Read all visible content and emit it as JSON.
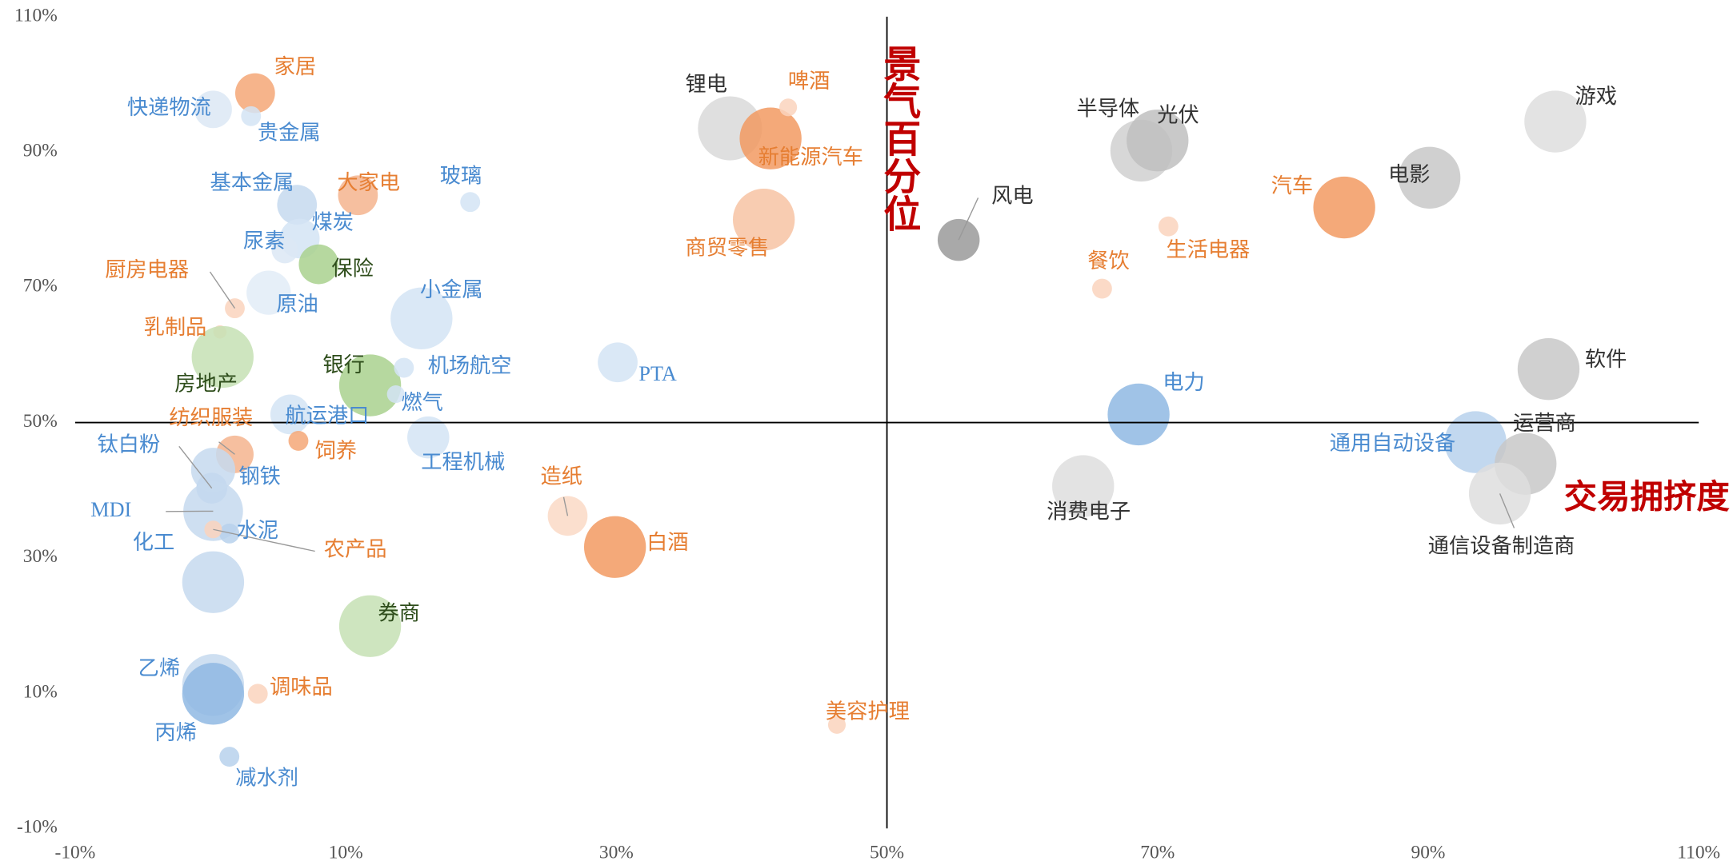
{
  "chart_data": {
    "type": "bubble",
    "x_label": "交易拥挤度",
    "y_label": "景气百分位",
    "xlim": [
      -10,
      110
    ],
    "ylim": [
      -10,
      110
    ],
    "axis_cross": {
      "x": 50,
      "y": 50
    },
    "xticks": [
      {
        "value": -10,
        "label": "-10%"
      },
      {
        "value": 10,
        "label": "10%"
      },
      {
        "value": 30,
        "label": "30%"
      },
      {
        "value": 50,
        "label": "50%"
      },
      {
        "value": 70,
        "label": "70%"
      },
      {
        "value": 90,
        "label": "90%"
      },
      {
        "value": 110,
        "label": "110%"
      }
    ],
    "yticks": [
      {
        "value": -10,
        "label": "-10%"
      },
      {
        "value": 10,
        "label": "10%"
      },
      {
        "value": 30,
        "label": "30%"
      },
      {
        "value": 50,
        "label": "50%"
      },
      {
        "value": 70,
        "label": "70%"
      },
      {
        "value": 90,
        "label": "90%"
      },
      {
        "value": 110,
        "label": "110%"
      }
    ],
    "points": [
      {
        "label": "家居",
        "x": 3.3,
        "y": 98.7,
        "size": 18,
        "color": "#f4a777",
        "label_color": "#e67e32"
      },
      {
        "label": "快递物流",
        "x": 0.2,
        "y": 96.3,
        "size": 17,
        "color": "#dce8f5",
        "label_color": "#4a8bd0"
      },
      {
        "label": "贵金属",
        "x": 3.0,
        "y": 95.3,
        "size": 9,
        "color": "#d4e4f4",
        "label_color": "#4a8bd0"
      },
      {
        "label": "基本金属",
        "x": 6.4,
        "y": 82.2,
        "size": 18,
        "color": "#c5d9ef",
        "label_color": "#4a8bd0"
      },
      {
        "label": "大家电",
        "x": 10.9,
        "y": 83.6,
        "size": 18,
        "color": "#f5b48e",
        "label_color": "#e67e32"
      },
      {
        "label": "玻璃",
        "x": 19.2,
        "y": 82.6,
        "size": 9,
        "color": "#d4e4f4",
        "label_color": "#4a8bd0"
      },
      {
        "label": "煤炭",
        "x": 6.6,
        "y": 77.2,
        "size": 18,
        "color": "#d4e4f4",
        "label_color": "#4a8bd0"
      },
      {
        "label": "尿素",
        "x": 5.5,
        "y": 75.5,
        "size": 12,
        "color": "#dce8f5",
        "label_color": "#4a8bd0"
      },
      {
        "label": "保险",
        "x": 8.0,
        "y": 73.4,
        "size": 18,
        "color": "#a9d18e",
        "label_color": "#2e4d1b"
      },
      {
        "label": "厨房电器",
        "x": 1.8,
        "y": 66.9,
        "size": 9,
        "color": "#fad4bd",
        "label_color": "#e67e32"
      },
      {
        "label": "原油",
        "x": 4.3,
        "y": 69.2,
        "size": 20,
        "color": "#e2ecf7",
        "label_color": "#4a8bd0"
      },
      {
        "label": "乳制品",
        "x": 0.7,
        "y": 63.4,
        "size": 6,
        "color": "#fad4bd",
        "label_color": "#e67e32"
      },
      {
        "label": "房地产",
        "x": 0.9,
        "y": 59.7,
        "size": 28,
        "color": "#c5e0b4",
        "label_color": "#2e4d1b"
      },
      {
        "label": "小金属",
        "x": 15.6,
        "y": 65.4,
        "size": 28,
        "color": "#d4e4f4",
        "label_color": "#4a8bd0"
      },
      {
        "label": "银行",
        "x": 11.8,
        "y": 55.5,
        "size": 28,
        "color": "#a9d18e",
        "label_color": "#2e4d1b"
      },
      {
        "label": "机场航空",
        "x": 14.3,
        "y": 58.1,
        "size": 9,
        "color": "#d4e4f4",
        "label_color": "#4a8bd0"
      },
      {
        "label": "PTA",
        "x": 30.1,
        "y": 58.9,
        "size": 18,
        "color": "#d4e4f4",
        "label_color": "#4a8bd0"
      },
      {
        "label": "燃气",
        "x": 13.7,
        "y": 54.2,
        "size": 8,
        "color": "#d4e4f4",
        "label_color": "#4a8bd0"
      },
      {
        "label": "航运港口",
        "x": 5.9,
        "y": 51.2,
        "size": 18,
        "color": "#d4e4f4",
        "label_color": "#4a8bd0"
      },
      {
        "label": "纺织服装",
        "x": 1.8,
        "y": 45.3,
        "size": 17,
        "color": "#f5b48e",
        "label_color": "#e67e32"
      },
      {
        "label": "饲养",
        "x": 6.5,
        "y": 47.3,
        "size": 9,
        "color": "#f4a777",
        "label_color": "#e67e32"
      },
      {
        "label": "工程机械",
        "x": 16.1,
        "y": 47.8,
        "size": 19,
        "color": "#d4e4f4",
        "label_color": "#4a8bd0"
      },
      {
        "label": "钛白粉",
        "x": 0.1,
        "y": 40.3,
        "size": 14,
        "color": "#b7d1ec",
        "label_color": "#4a8bd0"
      },
      {
        "label": "钢铁",
        "x": 0.2,
        "y": 43.0,
        "size": 20,
        "color": "#c5d9ef",
        "label_color": "#4a8bd0"
      },
      {
        "label": "MDI",
        "x": 0.2,
        "y": 36.9,
        "size": 27,
        "color": "#c5d9ef",
        "label_color": "#4a8bd0"
      },
      {
        "label": "化工",
        "x": 0.2,
        "y": 26.4,
        "size": 28,
        "color": "#c5d9ef",
        "label_color": "#4a8bd0"
      },
      {
        "label": "水泥",
        "x": 1.4,
        "y": 33.6,
        "size": 9,
        "color": "#b7d1ec",
        "label_color": "#4a8bd0"
      },
      {
        "label": "农产品",
        "x": 0.2,
        "y": 34.2,
        "size": 8,
        "color": "#fad4bd",
        "label_color": "#e67e32"
      },
      {
        "label": "券商",
        "x": 11.8,
        "y": 19.9,
        "size": 28,
        "color": "#c5e0b4",
        "label_color": "#2e4d1b"
      },
      {
        "label": "造纸",
        "x": 26.4,
        "y": 36.2,
        "size": 18,
        "color": "#fad9c5",
        "label_color": "#e67e32"
      },
      {
        "label": "白酒",
        "x": 29.9,
        "y": 31.6,
        "size": 28,
        "color": "#f29a62",
        "label_color": "#e67e32"
      },
      {
        "label": "乙烯",
        "x": 0.2,
        "y": 11.2,
        "size": 28,
        "color": "#c5d9ef",
        "label_color": "#4a8bd0"
      },
      {
        "label": "丙烯",
        "x": 0.2,
        "y": 9.9,
        "size": 28,
        "color": "#8fb8e3",
        "label_color": "#4a8bd0"
      },
      {
        "label": "调味品",
        "x": 3.5,
        "y": 9.9,
        "size": 9,
        "color": "#fad4bd",
        "label_color": "#e67e32"
      },
      {
        "label": "减水剂",
        "x": 1.4,
        "y": 0.6,
        "size": 9,
        "color": "#b7d1ec",
        "label_color": "#4a8bd0"
      },
      {
        "label": "锂电",
        "x": 38.4,
        "y": 93.5,
        "size": 29,
        "color": "#d9d9d9",
        "label_color": "#333333"
      },
      {
        "label": "新能源汽车",
        "x": 41.4,
        "y": 92.0,
        "size": 28,
        "color": "#f29a62",
        "label_color": "#e67e32"
      },
      {
        "label": "啤酒",
        "x": 42.7,
        "y": 96.6,
        "size": 8,
        "color": "#fad4bd",
        "label_color": "#e67e32"
      },
      {
        "label": "商贸零售",
        "x": 40.9,
        "y": 80.0,
        "size": 28,
        "color": "#f7c3a3",
        "label_color": "#e67e32"
      },
      {
        "label": "美容护理",
        "x": 46.3,
        "y": 5.3,
        "size": 8,
        "color": "#fad4bd",
        "label_color": "#e67e32"
      },
      {
        "label": "风电",
        "x": 55.3,
        "y": 77.0,
        "size": 19,
        "color": "#9a9a9a",
        "label_color": "#333333"
      },
      {
        "label": "半导体",
        "x": 68.8,
        "y": 90.2,
        "size": 28,
        "color": "#d0d0d0",
        "label_color": "#333333"
      },
      {
        "label": "光伏",
        "x": 70.0,
        "y": 91.7,
        "size": 28,
        "color": "#bfbfbf",
        "label_color": "#333333"
      },
      {
        "label": "餐饮",
        "x": 65.9,
        "y": 69.8,
        "size": 9,
        "color": "#fad4bd",
        "label_color": "#e67e32"
      },
      {
        "label": "生活电器",
        "x": 70.8,
        "y": 79.0,
        "size": 9,
        "color": "#fad4bd",
        "label_color": "#e67e32"
      },
      {
        "label": "汽车",
        "x": 83.8,
        "y": 81.8,
        "size": 28,
        "color": "#f29a62",
        "label_color": "#e67e32"
      },
      {
        "label": "电影",
        "x": 90.1,
        "y": 86.2,
        "size": 28,
        "color": "#c8c8c8",
        "label_color": "#333333"
      },
      {
        "label": "游戏",
        "x": 99.4,
        "y": 94.5,
        "size": 28,
        "color": "#dedede",
        "label_color": "#333333"
      },
      {
        "label": "软件",
        "x": 98.9,
        "y": 57.9,
        "size": 28,
        "color": "#c8c8c8",
        "label_color": "#333333"
      },
      {
        "label": "电力",
        "x": 68.6,
        "y": 51.2,
        "size": 28,
        "color": "#8fb8e3",
        "label_color": "#4a8bd0"
      },
      {
        "label": "通用自动设备",
        "x": 93.5,
        "y": 47.1,
        "size": 28,
        "color": "#b7d1ec",
        "label_color": "#4a8bd0"
      },
      {
        "label": "运营商",
        "x": 97.2,
        "y": 43.9,
        "size": 28,
        "color": "#c8c8c8",
        "label_color": "#333333"
      },
      {
        "label": "通信设备制造商",
        "x": 95.3,
        "y": 39.5,
        "size": 28,
        "color": "#dedede",
        "label_color": "#333333"
      },
      {
        "label": "消费电子",
        "x": 64.5,
        "y": 40.6,
        "size": 28,
        "color": "#dedede",
        "label_color": "#333333"
      }
    ]
  }
}
